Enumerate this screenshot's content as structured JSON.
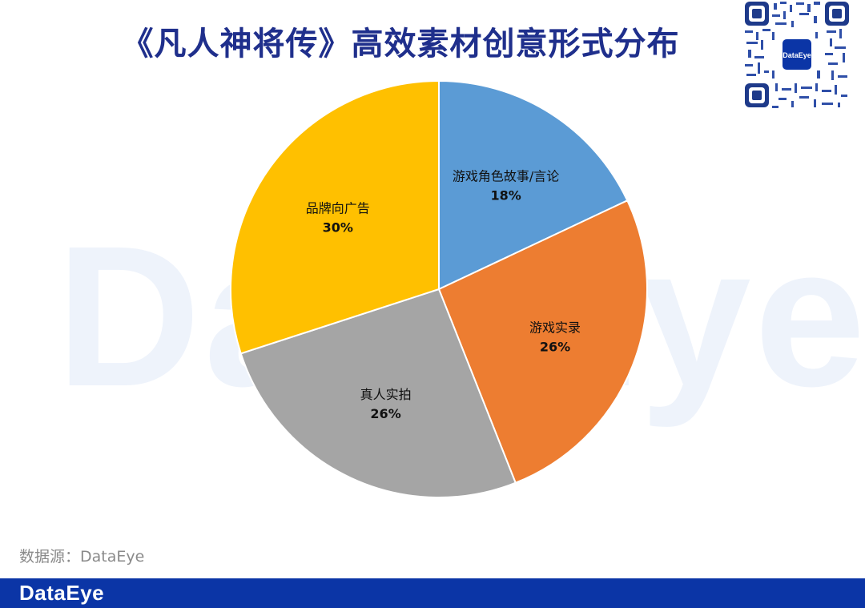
{
  "title": "《凡人神将传》高效素材创意形式分布",
  "watermark": "DataEye",
  "qr_logo_text": "DataEye",
  "source_text": "数据源：DataEye",
  "footer": {
    "brand": "DataEye"
  },
  "colors": {
    "title": "#1f2f8c",
    "footer_bar": "#0b35a6",
    "watermark": "#eef3fb"
  },
  "chart_data": {
    "type": "pie",
    "title": "《凡人神将传》高效素材创意形式分布",
    "start_angle_deg": 0,
    "direction": "clockwise",
    "slices": [
      {
        "label": "游戏角色故事/言论",
        "value": 18,
        "display": "18%",
        "color": "#5b9bd5"
      },
      {
        "label": "游戏实录",
        "value": 26,
        "display": "26%",
        "color": "#ed7d31"
      },
      {
        "label": "真人实拍",
        "value": 26,
        "display": "26%",
        "color": "#a5a5a5"
      },
      {
        "label": "品牌向广告",
        "value": 30,
        "display": "30%",
        "color": "#ffc000"
      }
    ]
  }
}
